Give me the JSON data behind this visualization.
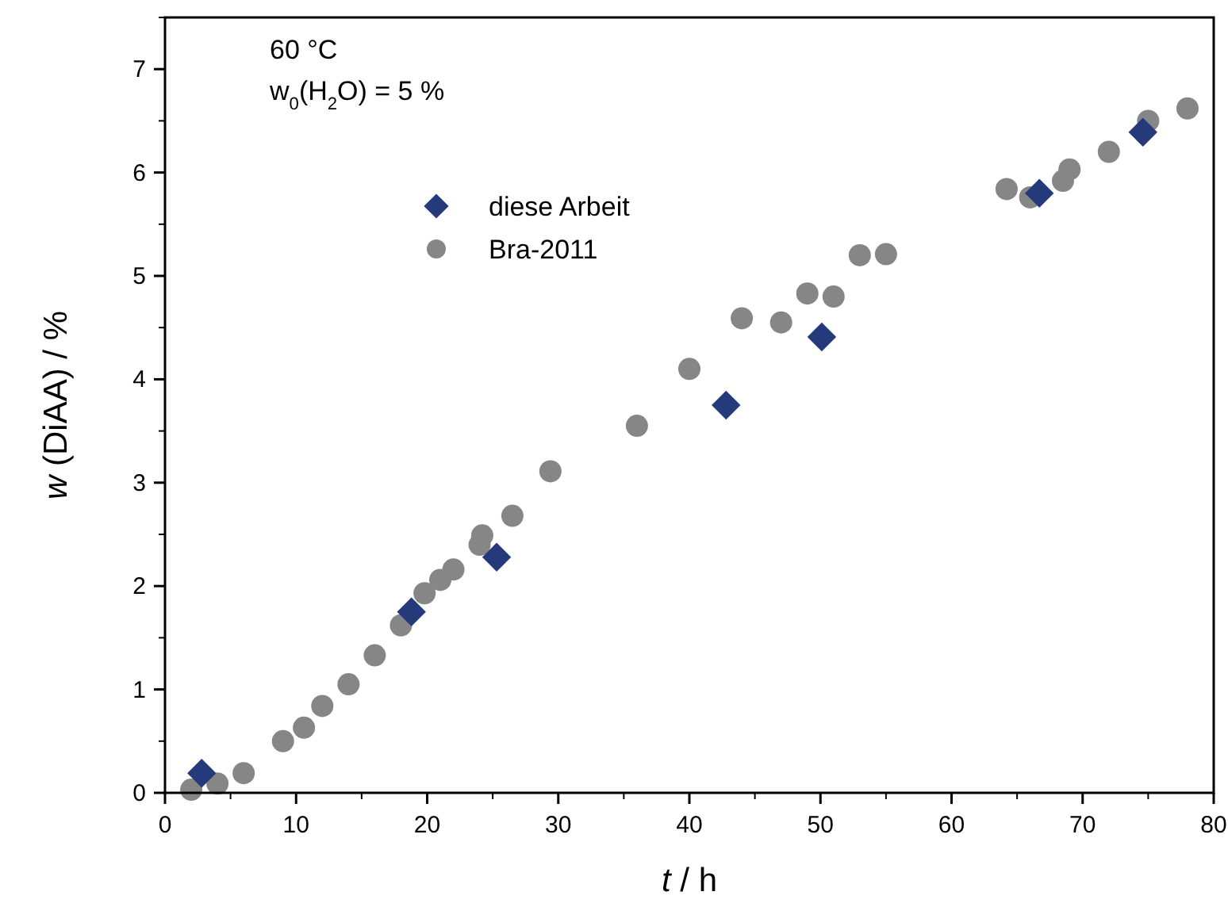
{
  "chart_data": {
    "type": "scatter",
    "xlabel": "t / h",
    "ylabel": "w (DiAA) / %",
    "annotations": [
      "60 °C",
      "w$_{0}$(H$_{2}$O) = 5 %"
    ],
    "xlim": [
      0,
      80
    ],
    "xticks": [
      0,
      10,
      20,
      30,
      40,
      50,
      60,
      70,
      80
    ],
    "ylim": [
      0,
      7.5
    ],
    "yticks": [
      0,
      1,
      2,
      3,
      4,
      5,
      6,
      7
    ],
    "grid": false,
    "legend": "top left",
    "series": [
      {
        "name": "Bra-2011",
        "color": "#868686",
        "marker": "circle",
        "x": [
          2,
          4,
          6,
          9,
          10.6,
          12,
          14,
          16,
          18,
          19.8,
          21,
          22,
          24,
          24.2,
          26.5,
          29.4,
          36,
          40,
          44,
          47,
          49,
          51,
          53,
          55,
          64.2,
          66,
          68.5,
          69,
          72,
          75,
          78
        ],
        "values": [
          0.03,
          0.09,
          0.19,
          0.5,
          0.63,
          0.84,
          1.05,
          1.33,
          1.62,
          1.93,
          2.06,
          2.16,
          2.4,
          2.49,
          2.68,
          3.11,
          3.55,
          4.1,
          4.59,
          4.55,
          4.83,
          4.8,
          5.2,
          5.21,
          5.84,
          5.76,
          5.92,
          6.03,
          6.2,
          6.5,
          6.62
        ]
      },
      {
        "name": "diese Arbeit",
        "color": "#253a7a",
        "marker": "diamond",
        "x": [
          2.8,
          18.8,
          25.3,
          42.8,
          50.1,
          66.7,
          74.6
        ],
        "values": [
          0.19,
          1.75,
          2.28,
          3.75,
          4.41,
          5.8,
          6.39
        ]
      }
    ]
  }
}
